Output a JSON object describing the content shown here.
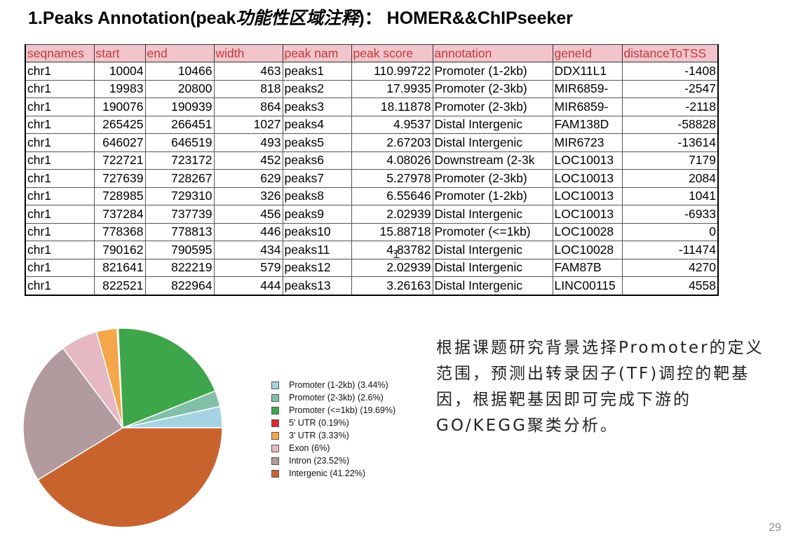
{
  "slide": {
    "title_prefix": "1.Peaks Annotation(peak",
    "title_cn": "功能性区域注释",
    "title_suffix": ")：  HOMER&&ChIPseeker",
    "page_number": "29",
    "note": "根据课题研究背景选择Promoter的定义范围，预测出转录因子(TF)调控的靶基因，根据靶基因即可完成下游的GO/KEGG聚类分析。"
  },
  "table": {
    "headers": [
      "seqnames",
      "start",
      "end",
      "width",
      "peak nam",
      "peak score",
      "annotation",
      "geneId",
      "distanceToTSS"
    ],
    "rows": [
      [
        "chr1",
        "10004",
        "10466",
        "463",
        "peaks1",
        "110.99722",
        "Promoter (1-2kb)",
        "DDX11L1",
        "-1408"
      ],
      [
        "chr1",
        "19983",
        "20800",
        "818",
        "peaks2",
        "17.9935",
        "Promoter (2-3kb)",
        "MIR6859-",
        "-2547"
      ],
      [
        "chr1",
        "190076",
        "190939",
        "864",
        "peaks3",
        "18.11878",
        "Promoter (2-3kb)",
        "MIR6859-",
        "-2118"
      ],
      [
        "chr1",
        "265425",
        "266451",
        "1027",
        "peaks4",
        "4.9537",
        "Distal Intergenic",
        "FAM138D",
        "-58828"
      ],
      [
        "chr1",
        "646027",
        "646519",
        "493",
        "peaks5",
        "2.67203",
        "Distal Intergenic",
        "MIR6723",
        "-13614"
      ],
      [
        "chr1",
        "722721",
        "723172",
        "452",
        "peaks6",
        "4.08026",
        "Downstream (2-3k",
        "LOC10013",
        "7179"
      ],
      [
        "chr1",
        "727639",
        "728267",
        "629",
        "peaks7",
        "5.27978",
        "Promoter (2-3kb)",
        "LOC10013",
        "2084"
      ],
      [
        "chr1",
        "728985",
        "729310",
        "326",
        "peaks8",
        "6.55646",
        "Promoter (1-2kb)",
        "LOC10013",
        "1041"
      ],
      [
        "chr1",
        "737284",
        "737739",
        "456",
        "peaks9",
        "2.02939",
        "Distal Intergenic",
        "LOC10013",
        "-6933"
      ],
      [
        "chr1",
        "778368",
        "778813",
        "446",
        "peaks10",
        "15.88718",
        "Promoter (<=1kb)",
        "LOC10028",
        "0"
      ],
      [
        "chr1",
        "790162",
        "790595",
        "434",
        "peaks11",
        "4.83782",
        "Distal Intergenic",
        "LOC10028",
        "-11474"
      ],
      [
        "chr1",
        "821641",
        "822219",
        "579",
        "peaks12",
        "2.02939",
        "Distal Intergenic",
        "FAM87B",
        "4270"
      ],
      [
        "chr1",
        "822521",
        "822964",
        "444",
        "peaks13",
        "3.26163",
        "Distal Intergenic",
        "LINC00115",
        "4558"
      ]
    ]
  },
  "chart_data": {
    "type": "pie",
    "labels": [
      "Promoter (1-2kb) (3.44%)",
      "Promoter (2-3kb) (2.6%)",
      "Promoter (<=1kb) (19.69%)",
      "5' UTR (0.19%)",
      "3' UTR (3.33%)",
      "Exon (6%)",
      "Intron (23.52%)",
      "Intergenic (41.22%)"
    ],
    "values": [
      3.44,
      2.6,
      19.69,
      0.19,
      3.33,
      6,
      23.52,
      41.22
    ],
    "colors": [
      "#a6d3e3",
      "#80bfa8",
      "#3ea64a",
      "#e02a2a",
      "#f5a64a",
      "#e6b8c3",
      "#b29b9f",
      "#c8632e"
    ],
    "legend_position": "right"
  }
}
